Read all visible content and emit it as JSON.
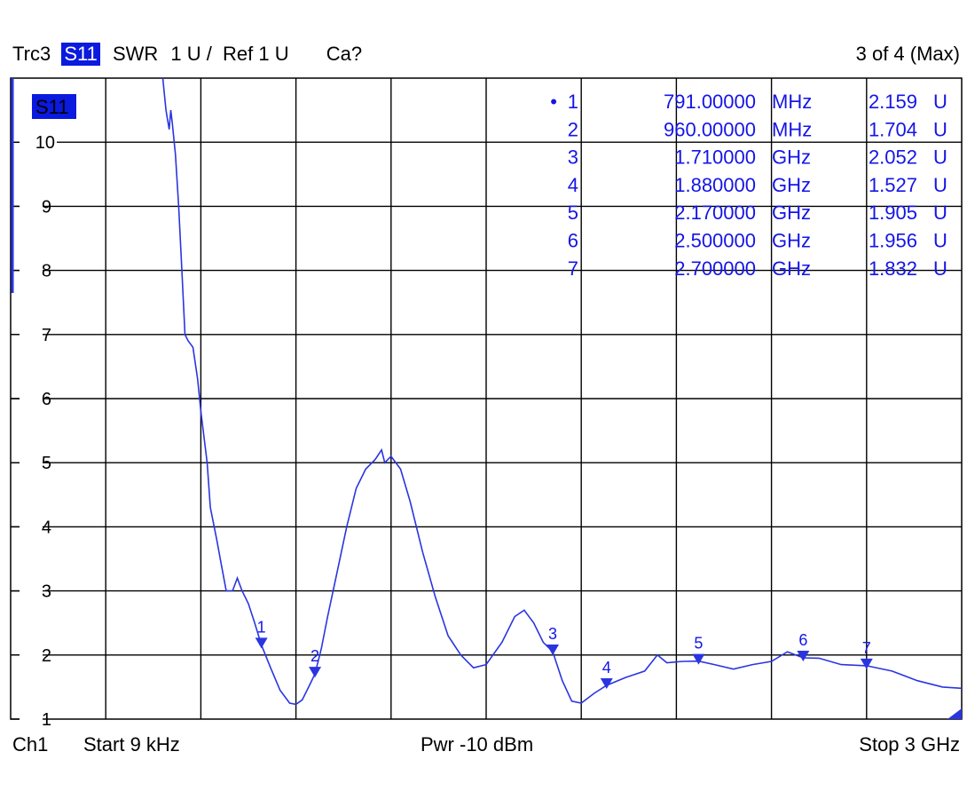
{
  "header": {
    "trace": "Trc3",
    "param": "S11",
    "format": "SWR",
    "scale": "1 U /",
    "ref": "Ref 1 U",
    "cal": "Ca?",
    "trace_count": "3 of 4 (Max)"
  },
  "footer": {
    "channel": "Ch1",
    "start": "Start  9 kHz",
    "power": "Pwr  -10 dBm",
    "stop": "Stop  3 GHz"
  },
  "colors": {
    "trace": "#2a35e0",
    "marker_text": "#1515e6",
    "badge": "#0a1adf",
    "grid": "#000000"
  },
  "chart_data": {
    "type": "line",
    "title": "",
    "xlabel": "",
    "ylabel": "",
    "x_unit": "GHz",
    "xlim": [
      9e-06,
      3.0
    ],
    "ylim": [
      1,
      11
    ],
    "y_ticks": [
      1,
      2,
      3,
      4,
      5,
      6,
      7,
      8,
      9,
      10
    ],
    "trace_label": "S11",
    "grid": true,
    "series": [
      {
        "values": [
          [
            0.48,
            11.0
          ],
          [
            0.49,
            10.5
          ],
          [
            0.5,
            10.2
          ],
          [
            0.505,
            10.5
          ],
          [
            0.51,
            10.3
          ],
          [
            0.52,
            9.8
          ],
          [
            0.53,
            9.0
          ],
          [
            0.54,
            8.0
          ],
          [
            0.55,
            7.0
          ],
          [
            0.56,
            6.9
          ],
          [
            0.575,
            6.8
          ],
          [
            0.59,
            6.3
          ],
          [
            0.6,
            5.8
          ],
          [
            0.62,
            5.0
          ],
          [
            0.63,
            4.3
          ],
          [
            0.65,
            3.8
          ],
          [
            0.665,
            3.4
          ],
          [
            0.68,
            3.0
          ],
          [
            0.7,
            3.0
          ],
          [
            0.715,
            3.2
          ],
          [
            0.73,
            3.0
          ],
          [
            0.75,
            2.8
          ],
          [
            0.77,
            2.5
          ],
          [
            0.791,
            2.159
          ],
          [
            0.82,
            1.8
          ],
          [
            0.85,
            1.45
          ],
          [
            0.88,
            1.25
          ],
          [
            0.9,
            1.23
          ],
          [
            0.92,
            1.3
          ],
          [
            0.94,
            1.5
          ],
          [
            0.96,
            1.704
          ],
          [
            0.98,
            2.1
          ],
          [
            1.0,
            2.6
          ],
          [
            1.03,
            3.3
          ],
          [
            1.06,
            4.0
          ],
          [
            1.09,
            4.6
          ],
          [
            1.12,
            4.9
          ],
          [
            1.15,
            5.05
          ],
          [
            1.17,
            5.2
          ],
          [
            1.18,
            5.0
          ],
          [
            1.2,
            5.1
          ],
          [
            1.23,
            4.9
          ],
          [
            1.26,
            4.4
          ],
          [
            1.3,
            3.6
          ],
          [
            1.34,
            2.9
          ],
          [
            1.38,
            2.3
          ],
          [
            1.42,
            2.0
          ],
          [
            1.46,
            1.8
          ],
          [
            1.5,
            1.85
          ],
          [
            1.55,
            2.2
          ],
          [
            1.59,
            2.6
          ],
          [
            1.62,
            2.7
          ],
          [
            1.65,
            2.5
          ],
          [
            1.68,
            2.2
          ],
          [
            1.71,
            2.052
          ],
          [
            1.74,
            1.6
          ],
          [
            1.77,
            1.28
          ],
          [
            1.8,
            1.25
          ],
          [
            1.84,
            1.4
          ],
          [
            1.88,
            1.527
          ],
          [
            1.94,
            1.65
          ],
          [
            2.0,
            1.75
          ],
          [
            2.04,
            2.0
          ],
          [
            2.07,
            1.88
          ],
          [
            2.12,
            1.9
          ],
          [
            2.17,
            1.905
          ],
          [
            2.22,
            1.85
          ],
          [
            2.28,
            1.78
          ],
          [
            2.34,
            1.85
          ],
          [
            2.4,
            1.9
          ],
          [
            2.45,
            2.05
          ],
          [
            2.5,
            1.956
          ],
          [
            2.55,
            1.95
          ],
          [
            2.62,
            1.85
          ],
          [
            2.7,
            1.832
          ],
          [
            2.78,
            1.75
          ],
          [
            2.86,
            1.6
          ],
          [
            2.94,
            1.5
          ],
          [
            3.0,
            1.48
          ]
        ]
      }
    ],
    "markers": [
      {
        "id": "1",
        "freq": "791.00000",
        "unit": "MHz",
        "value": "2.159",
        "value_unit": "U",
        "x": 0.791,
        "y": 2.159,
        "active": true
      },
      {
        "id": "2",
        "freq": "960.00000",
        "unit": "MHz",
        "value": "1.704",
        "value_unit": "U",
        "x": 0.96,
        "y": 1.704,
        "active": false
      },
      {
        "id": "3",
        "freq": "1.710000",
        "unit": "GHz",
        "value": "2.052",
        "value_unit": "U",
        "x": 1.71,
        "y": 2.052,
        "active": false
      },
      {
        "id": "4",
        "freq": "1.880000",
        "unit": "GHz",
        "value": "1.527",
        "value_unit": "U",
        "x": 1.88,
        "y": 1.527,
        "active": false
      },
      {
        "id": "5",
        "freq": "2.170000",
        "unit": "GHz",
        "value": "1.905",
        "value_unit": "U",
        "x": 2.17,
        "y": 1.905,
        "active": false
      },
      {
        "id": "6",
        "freq": "2.500000",
        "unit": "GHz",
        "value": "1.956",
        "value_unit": "U",
        "x": 2.5,
        "y": 1.956,
        "active": false
      },
      {
        "id": "7",
        "freq": "2.700000",
        "unit": "GHz",
        "value": "1.832",
        "value_unit": "U",
        "x": 2.7,
        "y": 1.832,
        "active": false
      }
    ]
  }
}
